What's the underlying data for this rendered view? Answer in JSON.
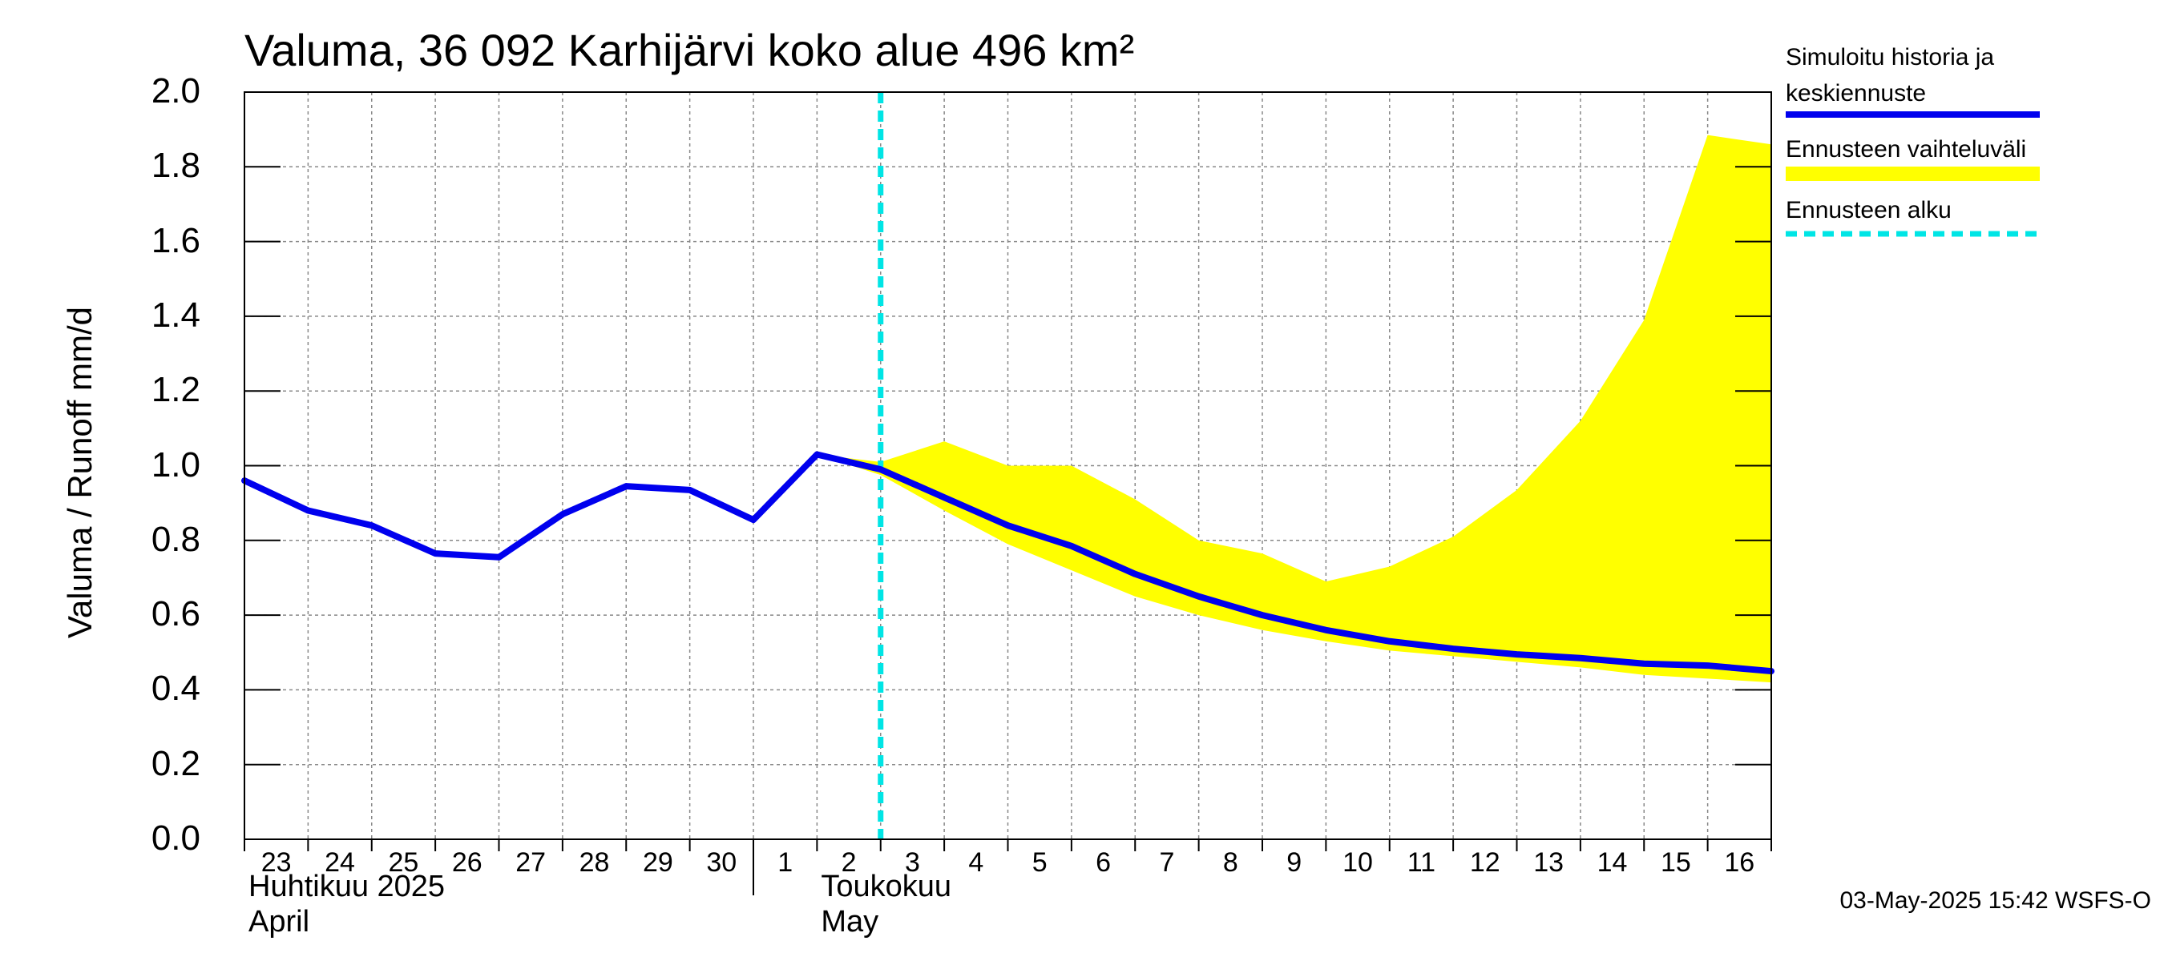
{
  "chart_data": {
    "type": "line",
    "title": "Valuma, 36 092 Karhijärvi koko alue 496 km²",
    "ylabel": "Valuma / Runoff     mm/d",
    "ylim": [
      0.0,
      2.0
    ],
    "yticks": [
      "0.0",
      "0.2",
      "0.4",
      "0.6",
      "0.8",
      "1.0",
      "1.2",
      "1.4",
      "1.6",
      "1.8",
      "2.0"
    ],
    "x_days": [
      "23",
      "24",
      "25",
      "26",
      "27",
      "28",
      "29",
      "30",
      "1",
      "2",
      "3",
      "4",
      "5",
      "6",
      "7",
      "8",
      "9",
      "10",
      "11",
      "12",
      "13",
      "14",
      "15",
      "16"
    ],
    "months": [
      {
        "line1": "Huhtikuu  2025",
        "line2": "April",
        "start_index": 0
      },
      {
        "line1": "Toukokuu",
        "line2": "May",
        "start_index": 8
      }
    ],
    "series": [
      {
        "name": "Simuloitu historia ja keskiennuste",
        "color": "#0000ee",
        "x": [
          0,
          1,
          2,
          3,
          4,
          5,
          6,
          7,
          8,
          9,
          10,
          11,
          12,
          13,
          14,
          15,
          16,
          17,
          18,
          19,
          20,
          21,
          22,
          23,
          24
        ],
        "values": [
          0.96,
          0.88,
          0.84,
          0.765,
          0.755,
          0.87,
          0.945,
          0.935,
          0.855,
          1.03,
          0.99,
          0.915,
          0.84,
          0.785,
          0.71,
          0.65,
          0.6,
          0.56,
          0.53,
          0.51,
          0.495,
          0.485,
          0.47,
          0.465,
          0.45
        ]
      }
    ],
    "band": {
      "name": "Ennusteen vaihteluväli",
      "color": "#ffff00",
      "x": [
        9,
        10,
        11,
        12,
        13,
        14,
        15,
        16,
        17,
        18,
        19,
        20,
        21,
        22,
        23,
        24
      ],
      "upper": [
        1.03,
        1.01,
        1.065,
        1.0,
        1.0,
        0.91,
        0.8,
        0.765,
        0.69,
        0.73,
        0.81,
        0.935,
        1.12,
        1.39,
        1.885,
        1.86
      ],
      "lower": [
        1.03,
        0.975,
        0.88,
        0.79,
        0.72,
        0.65,
        0.6,
        0.56,
        0.53,
        0.505,
        0.49,
        0.475,
        0.46,
        0.44,
        0.43,
        0.42
      ]
    },
    "forecast_start": {
      "name": "Ennusteen alku",
      "x": 10.0,
      "color": "#00e5e5"
    },
    "legend": "right",
    "grid": true
  },
  "legend_items": [
    {
      "line1": "Simuloitu historia ja",
      "line2": "keskiennuste"
    },
    {
      "line1": "Ennusteen vaihteluväli"
    },
    {
      "line1": "Ennusteen alku"
    }
  ],
  "timestamp": "03-May-2025 15:42 WSFS-O"
}
